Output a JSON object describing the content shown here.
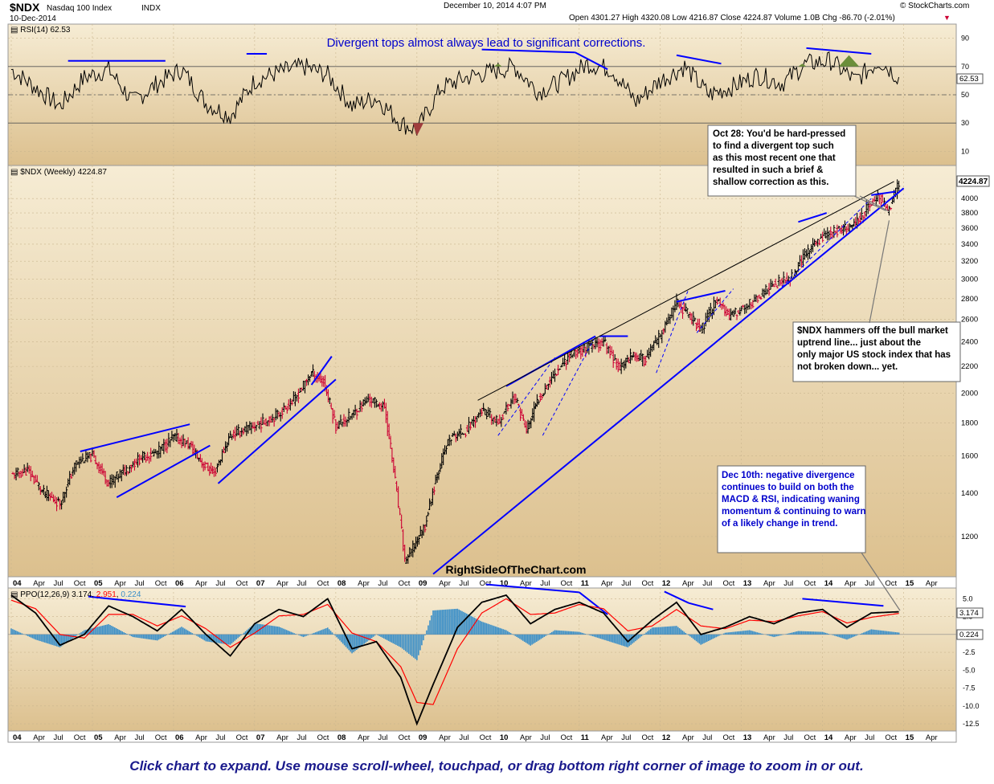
{
  "header": {
    "symbol": "$NDX",
    "name": "Nasdaq 100 Index",
    "exchange": "INDX",
    "date": "10-Dec-2014",
    "timestamp": "December 10, 2014 4:07 PM",
    "watermark": "© StockCharts.com",
    "ohlc_label": "Open 4301.27  High 4320.08  Low 4216.87  Close 4224.87  Volume 1.0B  Chg -86.70 (-2.01%)",
    "chg_arrow": "▼"
  },
  "site_watermark": "RightSideOfTheChart.com",
  "footer": "Click chart to expand. Use mouse scroll-wheel, touchpad, or drag bottom right corner of image to zoom in or out.",
  "colors": {
    "panel_bg_top": "#f6ecd4",
    "panel_bg_bottom": "#dcc08e",
    "trend_blue": "#0000ff",
    "note_blue": "#0000cc",
    "price_up": "#000000",
    "price_down": "#cc0033",
    "ppo_signal": "#ff0000",
    "histogram": "#3b8fc8",
    "rsi_fill_high": "#6b8e3a",
    "rsi_fill_low": "#a03c3c"
  },
  "chart_data": [
    {
      "type": "line",
      "panel": "rsi",
      "title": "RSI(14) 62.53",
      "headline": "Divergent tops almost always lead to significant corrections.",
      "y_ticks": [
        "90",
        "70",
        "50",
        "30",
        "10"
      ],
      "ylim": [
        0,
        100
      ],
      "last_value_label": "62.53",
      "x": [
        2004.0,
        2004.3,
        2004.6,
        2004.9,
        2005.2,
        2005.5,
        2005.8,
        2006.1,
        2006.4,
        2006.7,
        2007.0,
        2007.3,
        2007.6,
        2007.9,
        2008.2,
        2008.5,
        2008.8,
        2009.0,
        2009.3,
        2009.6,
        2009.9,
        2010.2,
        2010.5,
        2010.8,
        2011.1,
        2011.4,
        2011.7,
        2012.0,
        2012.3,
        2012.6,
        2012.9,
        2013.2,
        2013.5,
        2013.8,
        2014.1,
        2014.4,
        2014.7,
        2014.94
      ],
      "values": [
        68,
        55,
        42,
        62,
        68,
        45,
        58,
        68,
        44,
        35,
        60,
        66,
        70,
        64,
        42,
        48,
        30,
        25,
        55,
        62,
        66,
        70,
        52,
        60,
        72,
        68,
        45,
        60,
        70,
        50,
        56,
        64,
        58,
        72,
        74,
        60,
        74,
        62.5
      ]
    },
    {
      "type": "ohlc",
      "panel": "price",
      "title": "$NDX (Weekly) 4224.87",
      "scale": "log",
      "y_ticks": [
        1200,
        1400,
        1600,
        1800,
        2000,
        2200,
        2400,
        2600,
        2800,
        3000,
        3200,
        3400,
        3600,
        3800,
        4000
      ],
      "ylim": [
        1040,
        4500
      ],
      "last_value_label": "4224.87",
      "x": [
        2004.0,
        2004.2,
        2004.4,
        2004.6,
        2004.8,
        2005.0,
        2005.2,
        2005.4,
        2005.6,
        2005.8,
        2006.0,
        2006.2,
        2006.35,
        2006.5,
        2006.7,
        2006.9,
        2007.1,
        2007.3,
        2007.5,
        2007.7,
        2007.85,
        2008.0,
        2008.2,
        2008.4,
        2008.6,
        2008.75,
        2008.85,
        2008.95,
        2009.1,
        2009.25,
        2009.4,
        2009.6,
        2009.8,
        2010.0,
        2010.2,
        2010.35,
        2010.5,
        2010.7,
        2010.9,
        2011.1,
        2011.3,
        2011.5,
        2011.65,
        2011.8,
        2012.0,
        2012.2,
        2012.35,
        2012.5,
        2012.7,
        2012.85,
        2013.0,
        2013.2,
        2013.4,
        2013.6,
        2013.8,
        2014.0,
        2014.2,
        2014.35,
        2014.5,
        2014.7,
        2014.8,
        2014.94
      ],
      "values": [
        1490,
        1520,
        1400,
        1350,
        1560,
        1600,
        1450,
        1520,
        1590,
        1620,
        1710,
        1660,
        1560,
        1500,
        1720,
        1760,
        1800,
        1860,
        1960,
        2150,
        2080,
        1780,
        1850,
        1960,
        1900,
        1400,
        1100,
        1150,
        1250,
        1500,
        1700,
        1750,
        1880,
        1800,
        1980,
        1750,
        1960,
        2150,
        2300,
        2350,
        2400,
        2180,
        2300,
        2250,
        2450,
        2750,
        2650,
        2500,
        2800,
        2620,
        2700,
        2800,
        2950,
        3000,
        3300,
        3500,
        3580,
        3600,
        3800,
        4050,
        3800,
        4224.87
      ],
      "notes": [
        "Oct 28: You'd be hard-pressed to find a divergent top such as this most recent one that resulted in such a brief & shallow correction as this.",
        "$NDX hammers off the bull market uptrend line... just about the only major US stock index that has not broken down... yet."
      ]
    },
    {
      "type": "line",
      "panel": "ppo",
      "title": "PPO(12,26,9)",
      "legend": {
        "ppo": "3.174",
        "signal": "2.951",
        "histogram": "0.224"
      },
      "y_ticks": [
        "5.0",
        "2.5",
        "-2.5",
        "-5.0",
        "-7.5",
        "-10.0",
        "-12.5"
      ],
      "ylim": [
        -13.5,
        6.5
      ],
      "x": [
        2004.0,
        2004.3,
        2004.6,
        2004.9,
        2005.2,
        2005.5,
        2005.8,
        2006.1,
        2006.4,
        2006.7,
        2007.0,
        2007.3,
        2007.6,
        2007.9,
        2008.2,
        2008.5,
        2008.8,
        2009.0,
        2009.2,
        2009.5,
        2009.8,
        2010.1,
        2010.4,
        2010.7,
        2011.0,
        2011.3,
        2011.6,
        2011.9,
        2012.2,
        2012.5,
        2012.8,
        2013.1,
        2013.4,
        2013.7,
        2014.0,
        2014.3,
        2014.6,
        2014.94
      ],
      "series": [
        {
          "name": "PPO",
          "values": [
            5.5,
            3.0,
            -1.5,
            0.0,
            4.0,
            2.5,
            0.5,
            3.5,
            0.0,
            -3.0,
            1.5,
            3.5,
            2.5,
            5.0,
            -2.0,
            -1.0,
            -6.0,
            -12.5,
            -7.0,
            1.0,
            4.5,
            5.5,
            1.5,
            3.5,
            4.5,
            3.0,
            -1.0,
            2.0,
            4.5,
            0.0,
            1.0,
            2.5,
            1.5,
            3.0,
            3.5,
            1.0,
            3.0,
            3.174
          ]
        },
        {
          "name": "Signal",
          "values": [
            4.8,
            3.6,
            0.0,
            -0.5,
            2.8,
            2.8,
            1.2,
            2.6,
            0.8,
            -1.8,
            0.2,
            2.6,
            2.8,
            4.2,
            0.2,
            -1.0,
            -4.5,
            -9.5,
            -9.8,
            -2.0,
            3.0,
            5.0,
            2.8,
            3.0,
            4.2,
            3.6,
            0.5,
            1.2,
            3.5,
            1.2,
            0.8,
            2.0,
            1.8,
            2.6,
            3.2,
            1.6,
            2.4,
            2.951
          ]
        }
      ],
      "notes": [
        "Dec 10th: negative divergence continues to build on both the MACD & RSI, indicating waning momentum & continuing to warn of a likely change in trend."
      ]
    }
  ],
  "x_axis": {
    "labels": [
      "04",
      "Apr",
      "Jul",
      "Oct",
      "05",
      "Apr",
      "Jul",
      "Oct",
      "06",
      "Apr",
      "Jul",
      "Oct",
      "07",
      "Apr",
      "Jul",
      "Oct",
      "08",
      "Apr",
      "Jul",
      "Oct",
      "09",
      "Apr",
      "Jul",
      "Oct",
      "10",
      "Apr",
      "Jul",
      "Oct",
      "11",
      "Apr",
      "Jul",
      "Oct",
      "12",
      "Apr",
      "Jul",
      "Oct",
      "13",
      "Apr",
      "Jul",
      "Oct",
      "14",
      "Apr",
      "Jul",
      "Oct",
      "15",
      "Apr"
    ],
    "range": [
      2004.0,
      2015.35
    ]
  }
}
